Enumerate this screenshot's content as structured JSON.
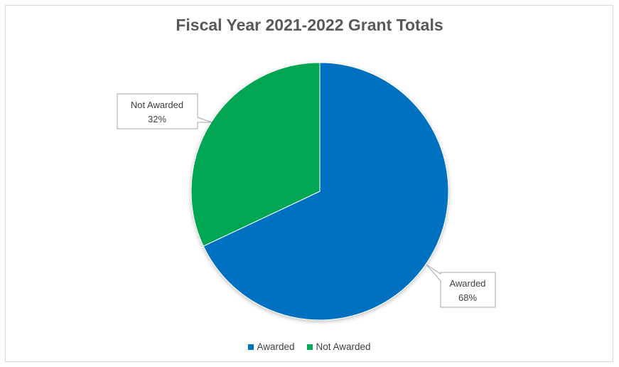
{
  "chart_data": {
    "type": "pie",
    "title": "Fiscal Year 2021-2022 Grant Totals",
    "slices": [
      {
        "label": "Awarded",
        "value": 68,
        "value_label": "68%",
        "color": "#0070c0"
      },
      {
        "label": "Not Awarded",
        "value": 32,
        "value_label": "32%",
        "color": "#00a651"
      }
    ],
    "start_angle": "12 o'clock",
    "direction": "clockwise",
    "legend": {
      "position": "bottom",
      "entries": [
        "Awarded",
        "Not Awarded"
      ]
    },
    "data_labels": "callouts with category name and percentage"
  }
}
